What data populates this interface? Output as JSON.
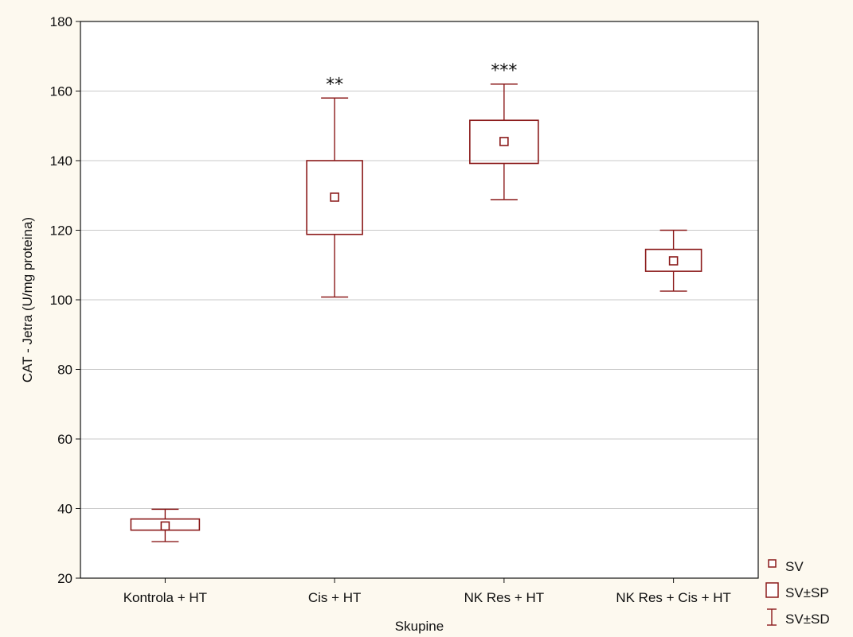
{
  "chart_data": {
    "type": "box",
    "categories": [
      "Kontrola + HT",
      "Cis + HT",
      "NK Res + HT",
      "NK Res + Cis + HT"
    ],
    "series": [
      {
        "mean": [
          35,
          129.5,
          145.5,
          111.2
        ],
        "se_low": [
          33.8,
          118.8,
          139.2,
          108.2
        ],
        "se_high": [
          37,
          140,
          151.6,
          114.5
        ],
        "sd_low": [
          30.5,
          100.8,
          128.8,
          102.5
        ],
        "sd_high": [
          39.8,
          158,
          162,
          120
        ]
      }
    ],
    "annotations": [
      "",
      "**",
      "***",
      ""
    ],
    "xlabel": "Skupine",
    "ylabel": "CAT - Jetra (U/mg proteina)",
    "ylim": [
      20,
      180
    ],
    "yticks": [
      20,
      40,
      60,
      80,
      100,
      120,
      140,
      160,
      180
    ],
    "grid": true,
    "legend": {
      "position": "bottom-right-outside",
      "items": [
        {
          "symbol": "mean",
          "label": "SV"
        },
        {
          "symbol": "box",
          "label": "SV±SP"
        },
        {
          "symbol": "whisker",
          "label": "SV±SD"
        }
      ]
    },
    "colors": {
      "series": "#8b1a1a",
      "grid": "#c8c8c8",
      "plot_bg": "#ffffff",
      "page_bg": "#fdf9ef"
    }
  }
}
